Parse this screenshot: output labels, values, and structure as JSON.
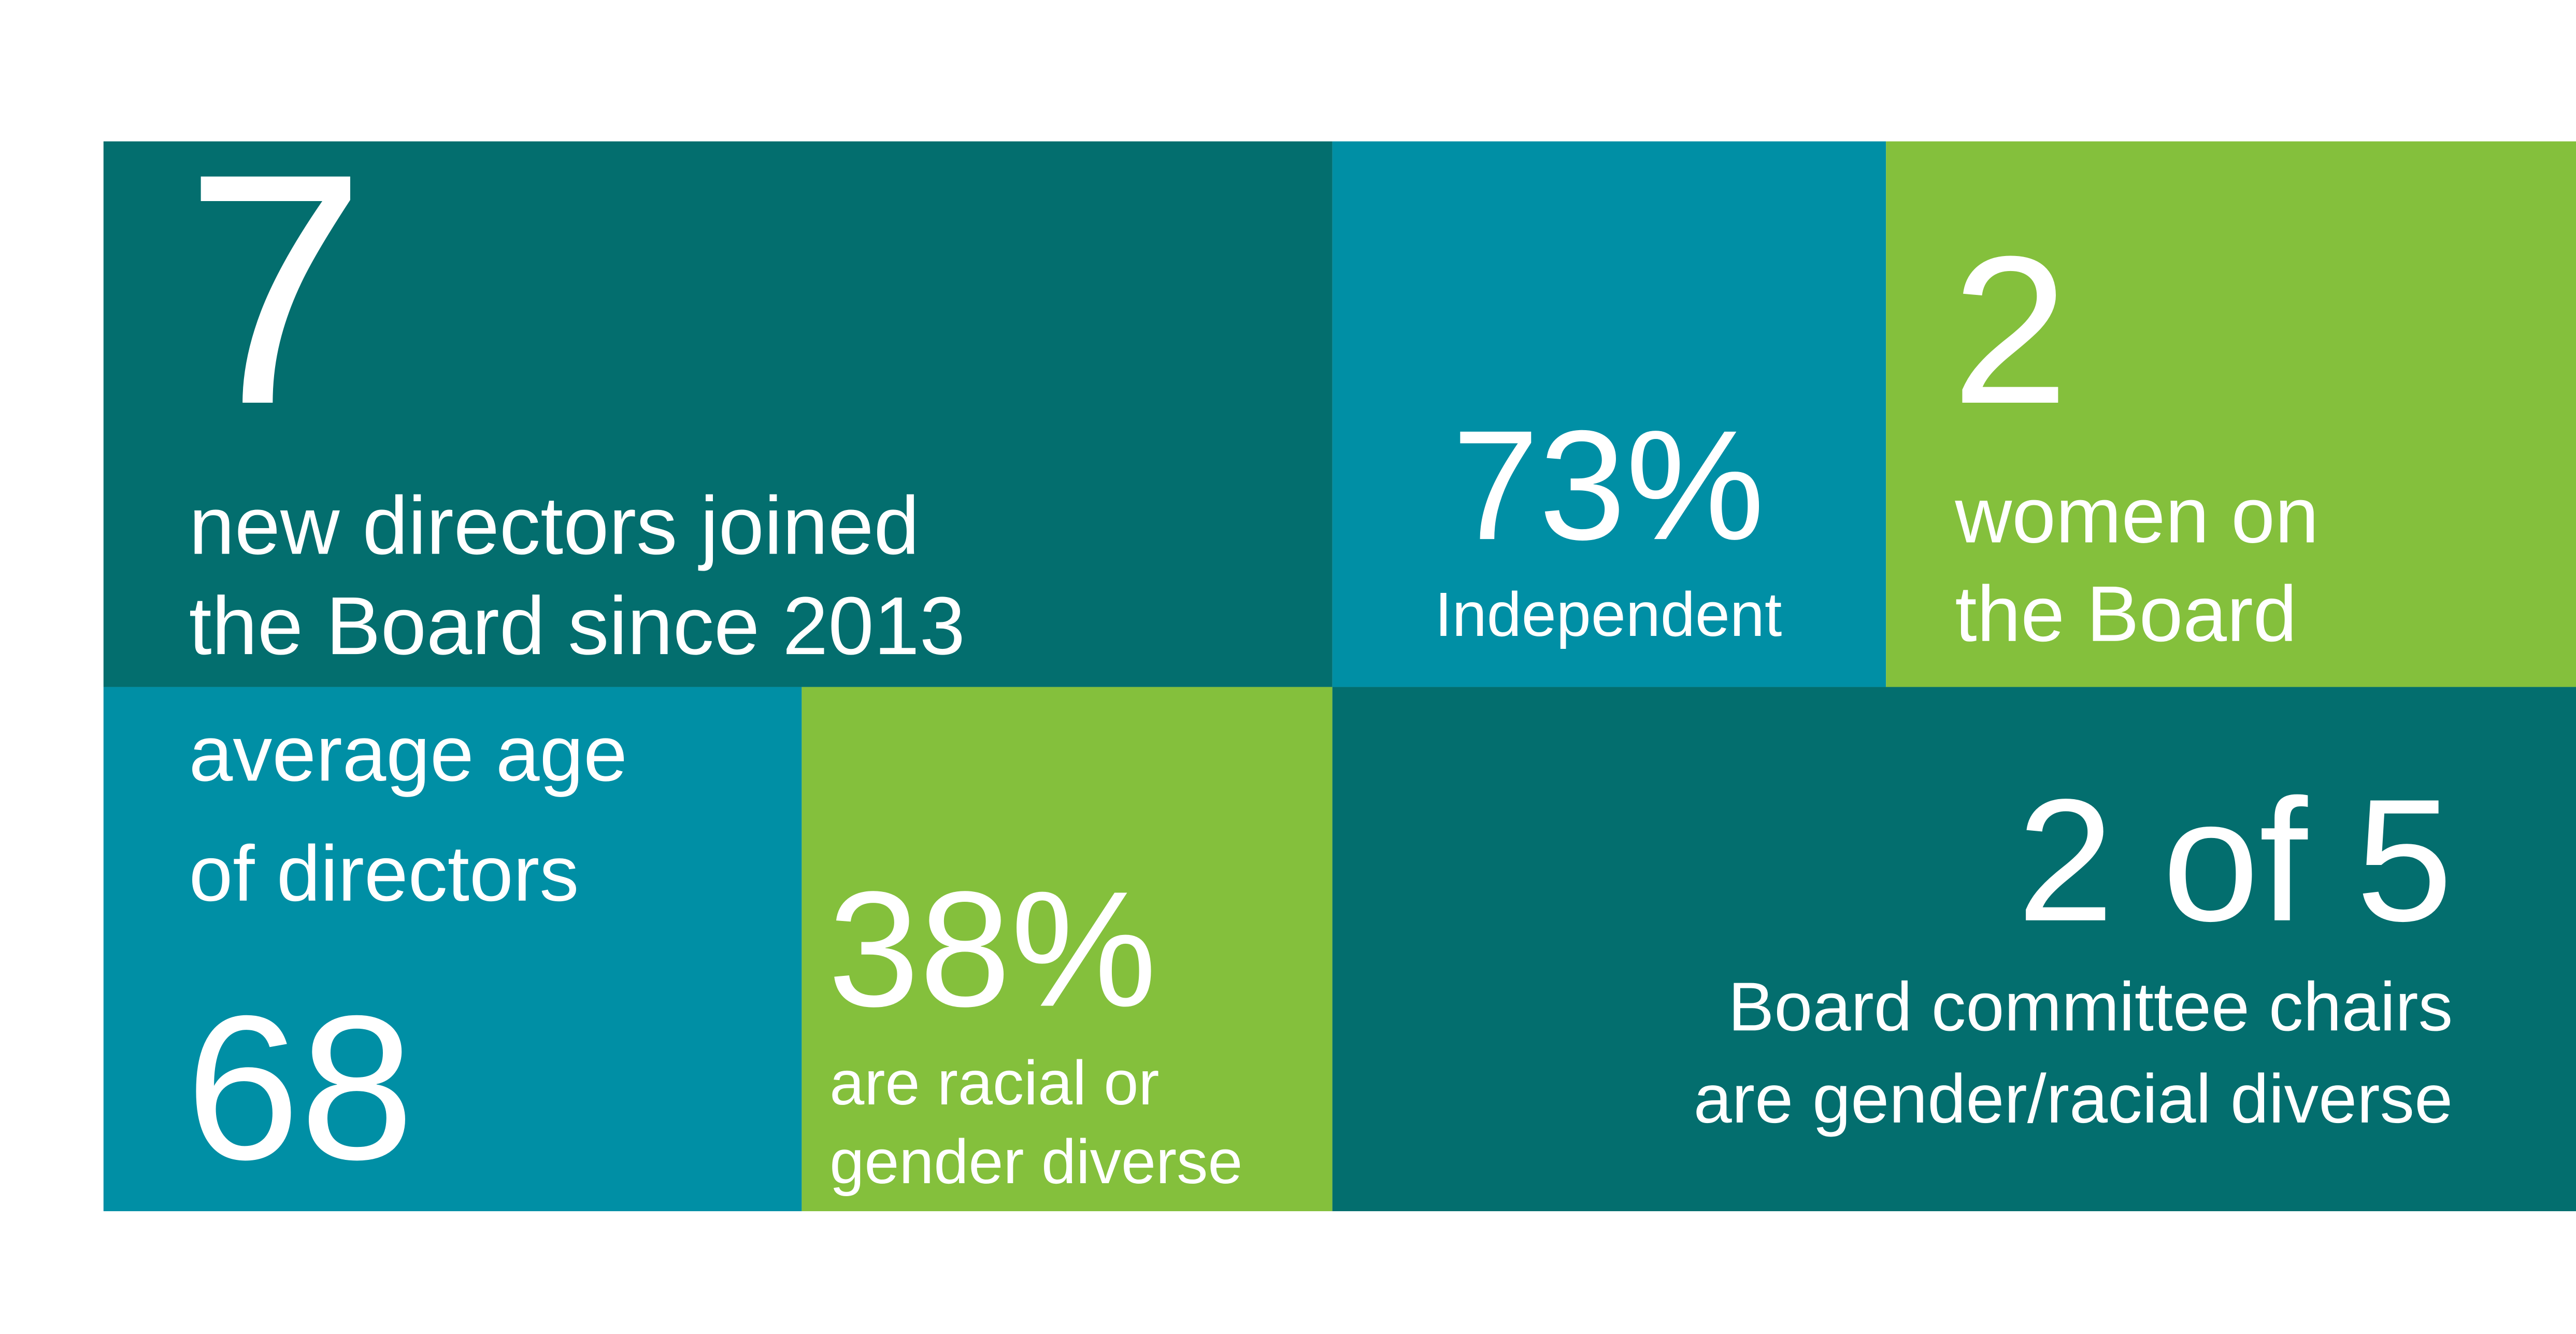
{
  "tiles": [
    {
      "figure": "7",
      "lines": [
        "new directors joined",
        "the Board since 2013"
      ]
    },
    {
      "figure": "73%",
      "lines": [
        "Independent"
      ]
    },
    {
      "figure": "2",
      "lines": [
        "women on",
        "the Board"
      ]
    },
    {
      "figure": "68",
      "lines": [
        "average age",
        "of directors"
      ]
    },
    {
      "figure": "38%",
      "lines": [
        "are racial or",
        "gender diverse"
      ]
    },
    {
      "figure": "2 of 5",
      "lines": [
        "Board committee chairs",
        "are gender/racial diverse"
      ]
    }
  ]
}
